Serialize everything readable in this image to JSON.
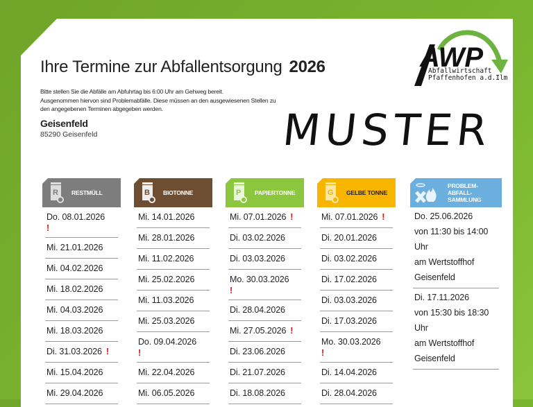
{
  "page": {
    "title": "Ihre Termine zur Abfallentsorgung",
    "year": "2026",
    "intro_lines": [
      "Bitte stellen Sie die Abfälle am Abfuhrtag bis 6:00 Uhr am Gehweg bereit.",
      "Ausgenommen hiervon sind Problemabfälle. Diese müssen an den ausgewiesenen Stellen zu",
      "den angegebenen Terminen abgegeben werden."
    ],
    "location": {
      "name": "Geisenfeld",
      "address": "85290 Geisenfeld"
    },
    "watermark": "MUSTER"
  },
  "logo": {
    "acronym": "AWP",
    "line1": "Abfallwirtschaft",
    "line2": "Pfaffenhofen a.d.Ilm",
    "arrow_color": "#6db33f"
  },
  "colors": {
    "background_green": "#74ae2c",
    "restmuell": "#7d7d7d",
    "biotonne": "#6e4e33",
    "papiertonne": "#8cc63f",
    "gelbe_tonne": "#f7b500",
    "problem": "#6aafdd",
    "alert": "#d01a1a"
  },
  "columns": [
    {
      "id": "restmuell",
      "letter": "R",
      "label": "RESTMÜLL",
      "dates": [
        {
          "text": "Do. 08.01.2026",
          "alert": "block"
        },
        {
          "text": "Mi. 21.01.2026"
        },
        {
          "text": "Mi. 04.02.2026"
        },
        {
          "text": "Mi. 18.02.2026"
        },
        {
          "text": "Mi. 04.03.2026"
        },
        {
          "text": "Mi. 18.03.2026"
        },
        {
          "text": "Di. 31.03.2026",
          "alert": "inline"
        },
        {
          "text": "Mi. 15.04.2026"
        },
        {
          "text": "Mi. 29.04.2026"
        }
      ]
    },
    {
      "id": "biotonne",
      "letter": "B",
      "label": "BIOTONNE",
      "dates": [
        {
          "text": "Mi. 14.01.2026"
        },
        {
          "text": "Mi. 28.01.2026"
        },
        {
          "text": "Mi. 11.02.2026"
        },
        {
          "text": "Mi. 25.02.2026"
        },
        {
          "text": "Mi. 11.03.2026"
        },
        {
          "text": "Mi. 25.03.2026"
        },
        {
          "text": "Do. 09.04.2026",
          "alert": "block"
        },
        {
          "text": "Mi. 22.04.2026"
        },
        {
          "text": "Mi. 06.05.2026"
        }
      ]
    },
    {
      "id": "papiertonne",
      "letter": "P",
      "label": "PAPIERTONNE",
      "dates": [
        {
          "text": "Mi. 07.01.2026",
          "alert": "inline"
        },
        {
          "text": "Di. 03.02.2026"
        },
        {
          "text": "Di. 03.03.2026"
        },
        {
          "text": "Mo. 30.03.2026",
          "alert": "block"
        },
        {
          "text": "Di. 28.04.2026"
        },
        {
          "text": "Mi. 27.05.2026",
          "alert": "inline"
        },
        {
          "text": "Di. 23.06.2026"
        },
        {
          "text": "Di. 21.07.2026"
        },
        {
          "text": "Di. 18.08.2026"
        }
      ]
    },
    {
      "id": "gelbe_tonne",
      "letter": "G",
      "label": "GELBE TONNE",
      "dates": [
        {
          "text": "Mi. 07.01.2026",
          "alert": "inline"
        },
        {
          "text": "Di. 20.01.2026"
        },
        {
          "text": "Di. 03.02.2026"
        },
        {
          "text": "Di. 17.02.2026"
        },
        {
          "text": "Di. 03.03.2026"
        },
        {
          "text": "Di. 17.03.2026"
        },
        {
          "text": "Mo. 30.03.2026",
          "alert": "block"
        },
        {
          "text": "Di. 14.04.2026"
        },
        {
          "text": "Di. 28.04.2026"
        }
      ]
    },
    {
      "id": "problem",
      "label_lines": [
        "PROBLEM-",
        "ABFALL-",
        "SAMMLUNG"
      ],
      "events": [
        {
          "date": "Do. 25.06.2026",
          "time": "von 11:30 bis 14:00 Uhr",
          "place": "am Wertstoffhof Geisenfeld"
        },
        {
          "date": "Di. 17.11.2026",
          "time": "von 15:30 bis 18:30 Uhr",
          "place": "am Wertstoffhof Geisenfeld"
        }
      ]
    }
  ],
  "alert_symbol": "!"
}
